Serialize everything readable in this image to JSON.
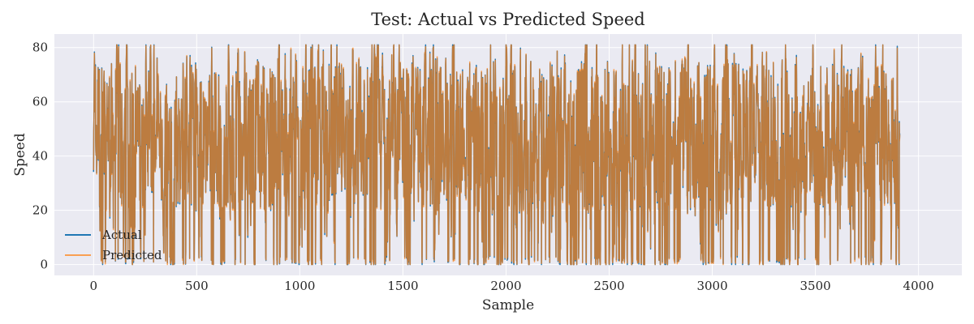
{
  "chart_data": {
    "type": "line",
    "title": "Test: Actual vs Predicted Speed",
    "xlabel": "Sample",
    "ylabel": "Speed",
    "xlim": [
      -190,
      4210
    ],
    "ylim": [
      -4,
      85
    ],
    "xticks": [
      0,
      500,
      1000,
      1500,
      2000,
      2500,
      3000,
      3500,
      4000
    ],
    "xtick_labels": [
      "0",
      "500",
      "1000",
      "1500",
      "2000",
      "2500",
      "3000",
      "3500",
      "4000"
    ],
    "yticks": [
      0,
      20,
      40,
      60,
      80
    ],
    "ytick_labels": [
      "0",
      "20",
      "40",
      "60",
      "80"
    ],
    "grid": true,
    "legend_position": "lower-left",
    "n_samples": 3910,
    "series": [
      {
        "name": "Actual",
        "color": "#1f77b4",
        "opacity": 1.0
      },
      {
        "name": "Predicted",
        "color": "#ff7f0e",
        "opacity": 0.7
      }
    ],
    "summary": {
      "y_min": 0,
      "y_max": 81,
      "typical_low": 20,
      "typical_high": 70
    }
  },
  "colors": {
    "plot_background": "#eaeaf2",
    "grid": "#ffffff",
    "text": "#262626"
  }
}
